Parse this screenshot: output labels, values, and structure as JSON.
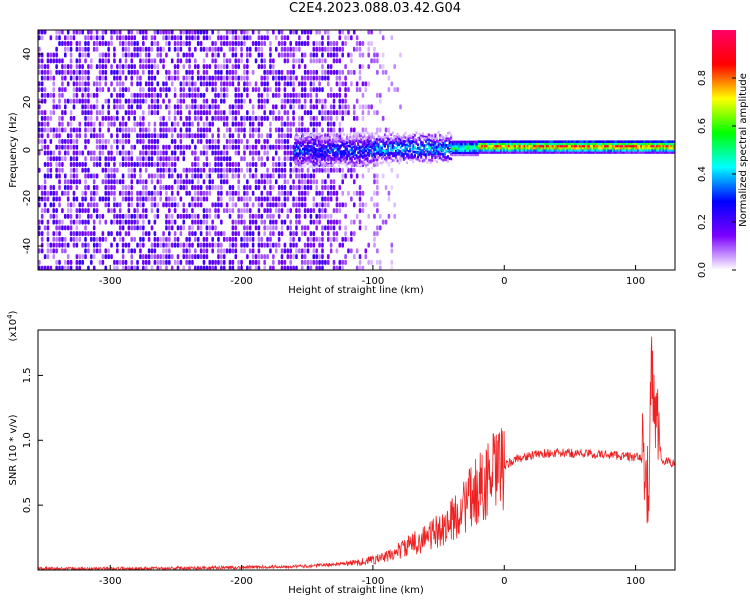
{
  "title": "C2E4.2023.088.03.42.G04",
  "chart_data": [
    {
      "type": "heatmap",
      "xlabel": "Height of straight line (km)",
      "ylabel": "Frequency (Hz)",
      "xlim": [
        -355,
        130
      ],
      "ylim": [
        -50,
        50
      ],
      "x_ticks": [
        -300,
        -200,
        -100,
        0,
        100
      ],
      "x_tick_labels": [
        "-300",
        "-200",
        "-100",
        "0",
        "100"
      ],
      "y_ticks": [
        -40,
        -20,
        0,
        20,
        40
      ],
      "y_tick_labels": [
        "-40",
        "-20",
        "0",
        "20",
        "40"
      ],
      "colorbar": {
        "label": "Normalized spectral amplitude",
        "range": [
          0,
          1
        ],
        "ticks": [
          0.0,
          0.2,
          0.4,
          0.6,
          0.8
        ],
        "tick_labels": [
          "0.0",
          "0.2",
          "0.4",
          "0.6",
          "0.8"
        ],
        "colors": [
          "#ffffff",
          "#7b00ff",
          "#0000ff",
          "#00ffff",
          "#00ff00",
          "#ffff00",
          "#ff0000",
          "#ff0066"
        ]
      },
      "signal_band": [
        {
          "x_start": -160,
          "x_end": -100,
          "freq_center": 0,
          "freq_halfwidth": 6,
          "amplitude": 0.35
        },
        {
          "x_start": -100,
          "x_end": -40,
          "freq_center": 1,
          "freq_halfwidth": 5,
          "amplitude": 0.45
        },
        {
          "x_start": -40,
          "x_end": -20,
          "freq_center": 1,
          "freq_halfwidth": 3,
          "amplitude": 0.6
        },
        {
          "x_start": -20,
          "x_end": 130,
          "freq_center": 1.5,
          "freq_halfwidth": 2.5,
          "amplitude": 0.9
        }
      ],
      "noise_region": {
        "x_start": -355,
        "x_end": -80,
        "amplitude": 0.2
      }
    },
    {
      "type": "line",
      "xlabel": "Height of straight line (km)",
      "ylabel": "SNR (10 * v/v)",
      "y_multiplier": "(x10",
      "y_multiplier_exp": "4",
      "y_multiplier_close": ")",
      "xlim": [
        -355,
        130
      ],
      "ylim": [
        0,
        1.85
      ],
      "x_ticks": [
        -300,
        -200,
        -100,
        0,
        100
      ],
      "x_tick_labels": [
        "-300",
        "-200",
        "-100",
        "0",
        "100"
      ],
      "y_ticks": [
        0.5,
        1.0,
        1.5
      ],
      "y_tick_labels": [
        "0.5",
        "1.0",
        "1.5"
      ],
      "color": "#ee2222",
      "series": [
        {
          "x": [
            -355,
            -300,
            -250,
            -200,
            -150,
            -120,
            -110,
            -100,
            -90,
            -80,
            -70,
            -60,
            -50,
            -40,
            -30,
            -20,
            -10,
            0,
            10,
            20,
            30,
            40,
            50,
            60,
            70,
            80,
            90,
            100,
            105,
            108,
            110,
            112,
            115,
            120,
            130
          ],
          "y": [
            0.01,
            0.01,
            0.015,
            0.02,
            0.03,
            0.05,
            0.06,
            0.08,
            0.1,
            0.15,
            0.2,
            0.25,
            0.3,
            0.38,
            0.5,
            0.62,
            0.72,
            0.8,
            0.86,
            0.88,
            0.9,
            0.9,
            0.9,
            0.9,
            0.89,
            0.89,
            0.88,
            0.87,
            0.86,
            0.85,
            0.45,
            1.6,
            1.2,
            0.84,
            0.82
          ]
        }
      ]
    }
  ]
}
